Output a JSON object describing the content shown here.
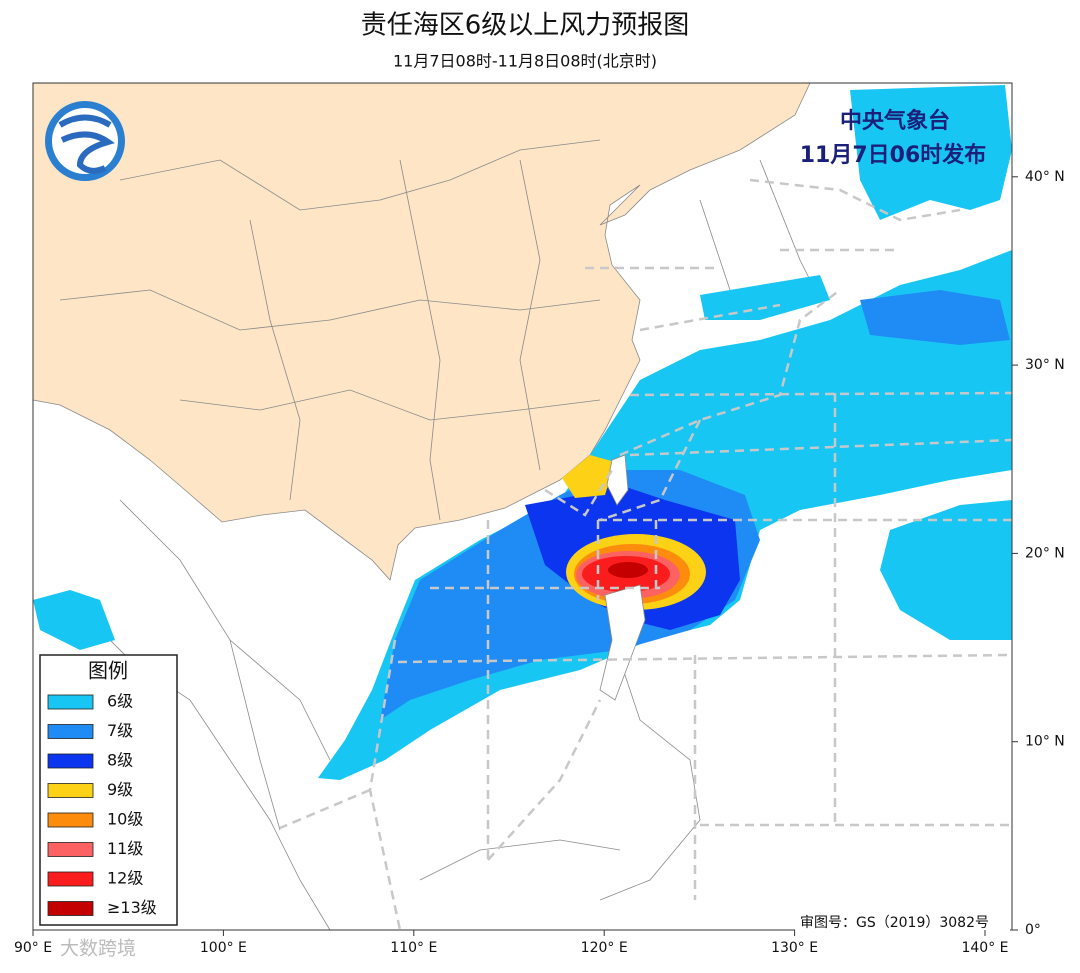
{
  "header": {
    "title": "责任海区6级以上风力预报图",
    "subtitle": "11月7日08时-11月8日08时(北京时)"
  },
  "issuer": {
    "name": "中央气象台",
    "time": "11月7日06时发布"
  },
  "legend": {
    "title": "图例",
    "items": [
      {
        "label": "6级",
        "color": "#18c6f4"
      },
      {
        "label": "7级",
        "color": "#1f8bf5"
      },
      {
        "label": "8级",
        "color": "#0b35ee"
      },
      {
        "label": "9级",
        "color": "#fcd116"
      },
      {
        "label": "10级",
        "color": "#fd8c0c"
      },
      {
        "label": "11级",
        "color": "#fc6262"
      },
      {
        "label": "12级",
        "color": "#fb1d1d"
      },
      {
        "label": "≥13级",
        "color": "#c40000"
      }
    ]
  },
  "axes": {
    "lon_ticks": [
      {
        "value": 90,
        "label": "90° E"
      },
      {
        "value": 100,
        "label": "100° E"
      },
      {
        "value": 110,
        "label": "110° E"
      },
      {
        "value": 120,
        "label": "120° E"
      },
      {
        "value": 130,
        "label": "130° E"
      },
      {
        "value": 140,
        "label": "140° E"
      }
    ],
    "lat_ticks": [
      {
        "value": 0,
        "label": "0°"
      },
      {
        "value": 10,
        "label": "10° N"
      },
      {
        "value": 20,
        "label": "20° N"
      },
      {
        "value": 30,
        "label": "30° N"
      },
      {
        "value": 40,
        "label": "40° N"
      }
    ]
  },
  "footer": {
    "approval": "审图号：GS（2019）3082号",
    "watermark": "大数跨境"
  }
}
